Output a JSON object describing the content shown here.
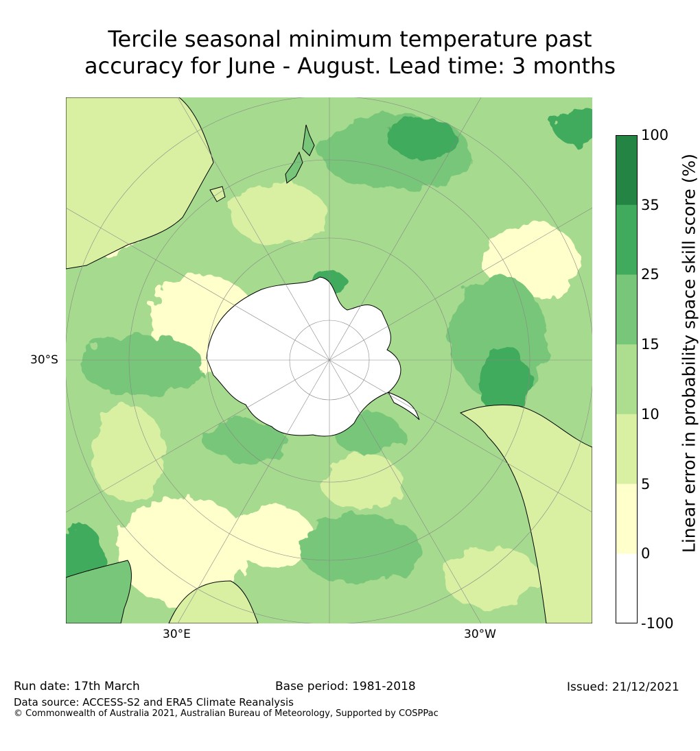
{
  "title": {
    "line1": "Tercile seasonal minimum temperature past",
    "line2": "accuracy for June - August. Lead time: 3 months"
  },
  "map": {
    "projection": "south-polar-stereographic",
    "lat_labels": [
      "30°S"
    ],
    "lon_labels": [
      "30°E",
      "30°W"
    ],
    "colors": {
      "ocean_base": "#a6da8f",
      "land_white": "#ffffff",
      "coast": "#000000",
      "grid": "#888888"
    }
  },
  "colorbar": {
    "title": "Linear error in probability space skill score (%)",
    "ticks": [
      "100",
      "35",
      "25",
      "15",
      "10",
      "5",
      "0",
      "-100"
    ],
    "bins": [
      {
        "from": "35",
        "to": "100",
        "color": "#238443"
      },
      {
        "from": "25",
        "to": "35",
        "color": "#41ab5d"
      },
      {
        "from": "15",
        "to": "25",
        "color": "#78c679"
      },
      {
        "from": "10",
        "to": "15",
        "color": "#addd8e"
      },
      {
        "from": "5",
        "to": "10",
        "color": "#d9f0a3"
      },
      {
        "from": "0",
        "to": "5",
        "color": "#ffffcc"
      },
      {
        "from": "-100",
        "to": "0",
        "color": "#ffffff"
      }
    ]
  },
  "footer": {
    "run_date": "Run date: 17th March",
    "base_period": "Base period: 1981-2018",
    "issued": "Issued: 21/12/2021",
    "data_source": "Data source: ACCESS-S2 and ERA5 Climate Reanalysis",
    "copyright": "© Commonwealth of Australia 2021, Australian Bureau of Meteorology, Supported by COSPPac"
  }
}
